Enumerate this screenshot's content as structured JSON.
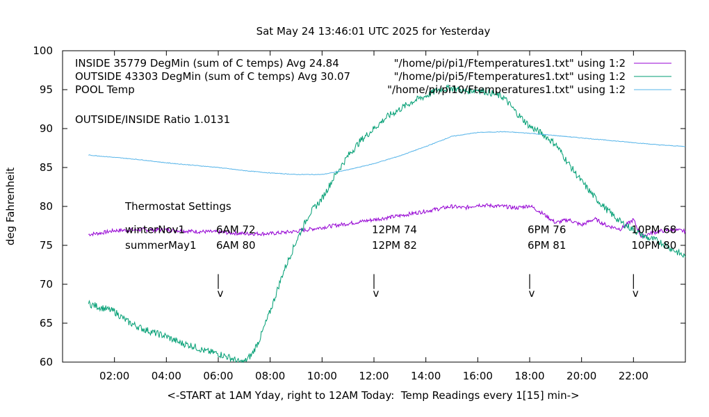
{
  "chart_data": {
    "type": "line",
    "title": "Sat May 24 13:46:01 UTC 2025 for Yesterday",
    "xlabel": "<-START at 1AM Yday, right to 12AM Today:  Temp Readings every 1[15] min->",
    "ylabel": "deg Fahrenheit",
    "xlim": [
      0,
      24
    ],
    "ylim": [
      60,
      100
    ],
    "x_ticks": [
      "02:00",
      "04:00",
      "06:00",
      "08:00",
      "10:00",
      "12:00",
      "14:00",
      "16:00",
      "18:00",
      "20:00",
      "22:00"
    ],
    "x_tick_hours": [
      2,
      4,
      6,
      8,
      10,
      12,
      14,
      16,
      18,
      20,
      22
    ],
    "y_ticks": [
      60,
      65,
      70,
      75,
      80,
      85,
      90,
      95,
      100
    ],
    "legend_position": "top",
    "series": [
      {
        "name": "INSIDE 35779 DegMin (sum of C temps) Avg 24.84",
        "source": "\"/home/pi/pi1/Ftemperatures1.txt\" using 1:2",
        "color": "#9400d3",
        "x": [
          1.0,
          1.5,
          2.0,
          3.0,
          4.0,
          5.0,
          6.0,
          7.0,
          8.0,
          9.0,
          10.0,
          11.0,
          12.0,
          13.0,
          14.0,
          15.0,
          15.5,
          16.0,
          16.5,
          17.0,
          17.5,
          18.0,
          18.5,
          19.0,
          19.5,
          20.0,
          20.5,
          21.0,
          21.5,
          22.0,
          22.3,
          22.6,
          23.0,
          23.5,
          24.0
        ],
        "y": [
          76.4,
          76.6,
          76.9,
          77.0,
          77.0,
          76.8,
          76.7,
          76.5,
          76.5,
          76.8,
          77.3,
          77.8,
          78.3,
          78.8,
          79.4,
          80.0,
          79.8,
          80.2,
          80.1,
          80.0,
          79.8,
          80.1,
          79.1,
          77.9,
          78.3,
          77.6,
          78.4,
          77.5,
          77.1,
          78.3,
          76.1,
          76.5,
          76.8,
          77.0,
          76.8
        ]
      },
      {
        "name": "OUTSIDE 43303 DegMin (sum of C temps) Avg 30.07",
        "source": "\"/home/pi/pi5/Ftemperatures1.txt\" using 1:2",
        "color": "#009e73",
        "x": [
          1.0,
          1.5,
          2.0,
          2.5,
          3.0,
          3.5,
          4.0,
          4.5,
          5.0,
          5.5,
          6.0,
          6.5,
          6.8,
          7.0,
          7.3,
          7.6,
          8.0,
          8.5,
          9.0,
          9.5,
          10.0,
          10.5,
          11.0,
          11.5,
          12.0,
          12.5,
          13.0,
          13.5,
          14.0,
          14.5,
          15.0,
          15.5,
          16.0,
          16.5,
          17.0,
          17.5,
          18.0,
          18.5,
          19.0,
          19.5,
          20.0,
          20.5,
          21.0,
          21.5,
          22.0,
          22.5,
          23.0,
          23.5,
          24.0
        ],
        "y": [
          67.5,
          67.0,
          66.5,
          65.2,
          64.4,
          63.8,
          63.3,
          62.5,
          62.1,
          61.4,
          61.1,
          60.5,
          60.0,
          60.0,
          61.0,
          63.0,
          66.5,
          71.5,
          75.5,
          79.0,
          81.0,
          84.0,
          86.5,
          88.5,
          90.0,
          91.5,
          92.5,
          93.5,
          94.2,
          95.0,
          95.2,
          94.8,
          95.0,
          94.6,
          94.0,
          92.0,
          90.3,
          89.3,
          88.0,
          85.5,
          83.2,
          81.2,
          79.5,
          78.0,
          77.0,
          76.0,
          75.5,
          74.5,
          73.5
        ]
      },
      {
        "name": "POOL Temp",
        "source": "\"/home/pi/pi10/Ftemperatures1.txt\" using 1:2",
        "color": "#56b4e9",
        "x": [
          1.0,
          2.0,
          3.0,
          4.0,
          5.0,
          6.0,
          7.0,
          8.0,
          9.0,
          10.0,
          11.0,
          12.0,
          13.0,
          14.0,
          15.0,
          16.0,
          17.0,
          18.0,
          19.0,
          20.0,
          21.0,
          22.0,
          23.0,
          24.0
        ],
        "y": [
          86.6,
          86.3,
          86.0,
          85.6,
          85.3,
          85.0,
          84.6,
          84.3,
          84.1,
          84.1,
          84.7,
          85.5,
          86.5,
          87.7,
          89.0,
          89.5,
          89.6,
          89.4,
          89.1,
          88.8,
          88.5,
          88.2,
          87.9,
          87.7
        ]
      }
    ],
    "annotations": {
      "ratio": "OUTSIDE/INSIDE Ratio 1.0131",
      "thermostat_title": "Thermostat Settings",
      "thermostat_rows": [
        {
          "label": "winterNov1",
          "y": 77.0,
          "settings": [
            {
              "hour": 6,
              "text": "6AM 72"
            },
            {
              "hour": 12,
              "text": "12PM 74"
            },
            {
              "hour": 18,
              "text": "6PM 76"
            },
            {
              "hour": 22,
              "text": "10PM 68"
            }
          ]
        },
        {
          "label": "summerMay1",
          "y": 75.0,
          "settings": [
            {
              "hour": 6,
              "text": "6AM 80"
            },
            {
              "hour": 12,
              "text": "12PM 82"
            },
            {
              "hour": 18,
              "text": "6PM 81"
            },
            {
              "hour": 22,
              "text": "10PM 80"
            }
          ]
        }
      ],
      "markers": [
        {
          "hour": 6,
          "glyph": "v"
        },
        {
          "hour": 12,
          "glyph": "v"
        },
        {
          "hour": 18,
          "glyph": "v"
        },
        {
          "hour": 22,
          "glyph": "v"
        }
      ]
    }
  }
}
